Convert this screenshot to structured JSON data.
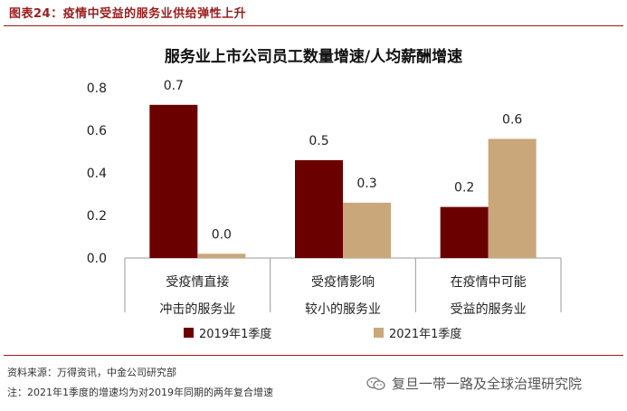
{
  "figure_label": "图表24：疫情中受益的服务业供给弹性上升",
  "source": "资料来源：万得资讯，中金公司研究部",
  "note": "注：2021年1季度的增速均为对2019年同期的两年复合增速",
  "watermark": "复旦一带一路及全球治理研究院",
  "colors": {
    "series1": "#6b0000",
    "series2": "#c9a77a",
    "accent": "#9b1c1c"
  },
  "chart_data": {
    "type": "bar",
    "title": "服务业上市公司员工数量增速/人均薪酬增速",
    "categories": [
      [
        "受疫情直接",
        "冲击的服务业"
      ],
      [
        "受疫情影响",
        "较小的服务业"
      ],
      [
        "在疫情中可能",
        "受益的服务业"
      ]
    ],
    "series": [
      {
        "name": "2019年1季度",
        "values": [
          0.72,
          0.46,
          0.24
        ],
        "data_labels": [
          "0.7",
          "0.5",
          "0.2"
        ]
      },
      {
        "name": "2021年1季度",
        "values": [
          0.02,
          0.26,
          0.56
        ],
        "data_labels": [
          "0.0",
          "0.3",
          "0.6"
        ]
      }
    ],
    "ylim": [
      0,
      0.8
    ],
    "yticks": [
      "0.0",
      "0.2",
      "0.4",
      "0.6",
      "0.8"
    ],
    "legend": "bottom",
    "grid": false
  }
}
